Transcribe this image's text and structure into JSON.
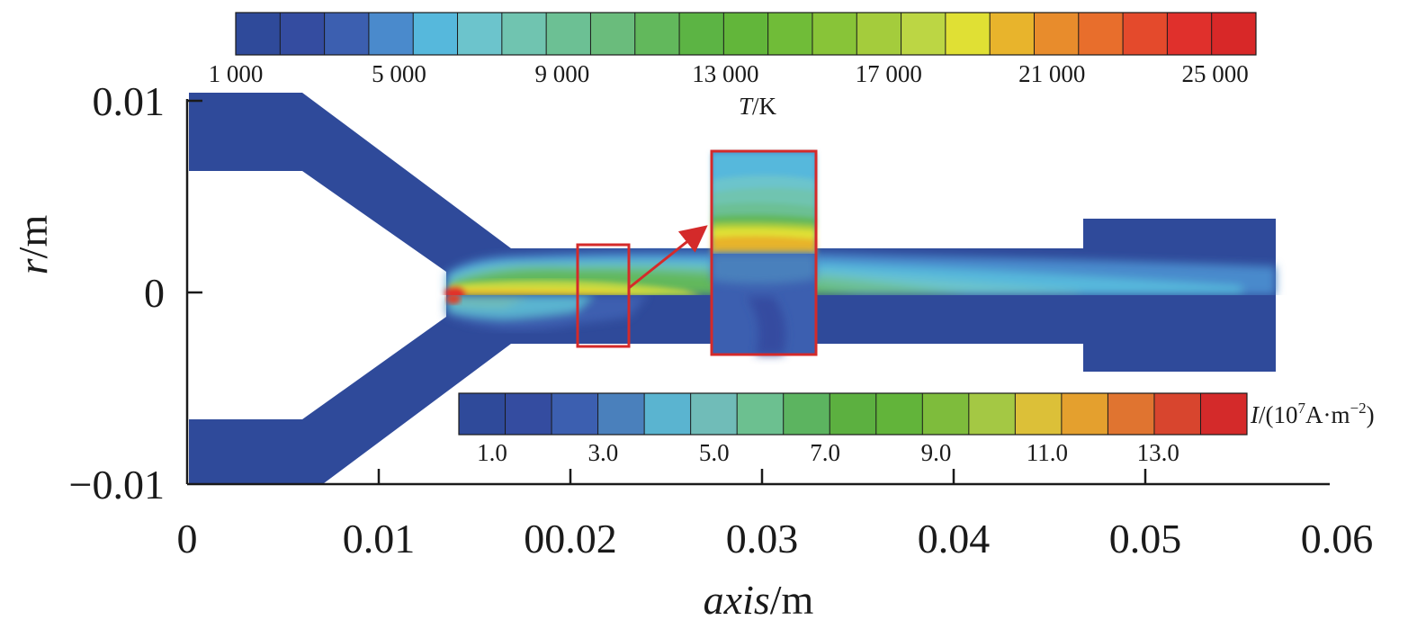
{
  "chart_data": {
    "type": "heatmap",
    "title": "",
    "x_axis": {
      "label_italic": "axis",
      "label_unit": "/m",
      "range": [
        0,
        0.06
      ],
      "ticks": [
        0,
        0.01,
        0.02,
        0.03,
        0.04,
        0.05,
        0.06
      ],
      "tick_labels": [
        "0",
        "0.01",
        "00.02",
        "0.03",
        "0.04",
        "0.05",
        "0.06"
      ]
    },
    "y_axis": {
      "label_italic": "r",
      "label_unit": "/m",
      "range": [
        -0.01,
        0.01
      ],
      "ticks": [
        -0.01,
        0,
        0.01
      ],
      "tick_labels": [
        "−0.01",
        "0",
        "0.01"
      ]
    },
    "temperature_colorbar": {
      "label_italic": "T",
      "label_unit": "/K",
      "range": [
        1000,
        26000
      ],
      "ticks": [
        1000,
        5000,
        9000,
        13000,
        17000,
        21000,
        25000
      ],
      "tick_labels": [
        "1 000",
        "5 000",
        "9 000",
        "13 000",
        "17 000",
        "21 000",
        "25 000"
      ],
      "colors": [
        "#2f4a9a",
        "#344ca0",
        "#3c5fb0",
        "#4a8acc",
        "#56b8dc",
        "#6cc4cc",
        "#70c4b0",
        "#6cc094",
        "#6abc7c",
        "#62b85c",
        "#5cb444",
        "#62b63a",
        "#70bc38",
        "#88c438",
        "#a4cc3c",
        "#bcd644",
        "#e0e034",
        "#e8b42c",
        "#e88c2c",
        "#e86e2c",
        "#e44a2c",
        "#e0302c",
        "#d82828"
      ]
    },
    "current_density_colorbar": {
      "label_italic": "I",
      "label_unit_prefix": "/(10",
      "label_unit_exp": "7",
      "label_unit_mid": "A·m",
      "label_unit_exp2": "−2",
      "label_unit_suffix": ")",
      "range": [
        0.4,
        14.6
      ],
      "ticks": [
        1.0,
        3.0,
        5.0,
        7.0,
        9.0,
        11.0,
        13.0
      ],
      "tick_labels": [
        "1.0",
        "3.0",
        "5.0",
        "7.0",
        "9.0",
        "11.0",
        "13.0"
      ],
      "colors": [
        "#2f4a9a",
        "#344ca0",
        "#3c5fb0",
        "#4a80bc",
        "#5ab4d0",
        "#70bcb8",
        "#6cc090",
        "#5cb460",
        "#5cb040",
        "#62b43a",
        "#7ebc3c",
        "#a4c844",
        "#dcc038",
        "#e4a02e",
        "#e07430",
        "#d8452e",
        "#d42a2a"
      ]
    },
    "zoom_box": {
      "x_range": [
        0.0217,
        0.0231
      ],
      "r_range": [
        -0.0028,
        0.0025
      ],
      "magnified_x_range": [
        0.0273,
        0.0331
      ],
      "magnified_r_range": [
        -0.0033,
        0.0075
      ]
    },
    "colors": {
      "background_field": "#2f4a9a",
      "highlight": "#d42a2a"
    }
  }
}
